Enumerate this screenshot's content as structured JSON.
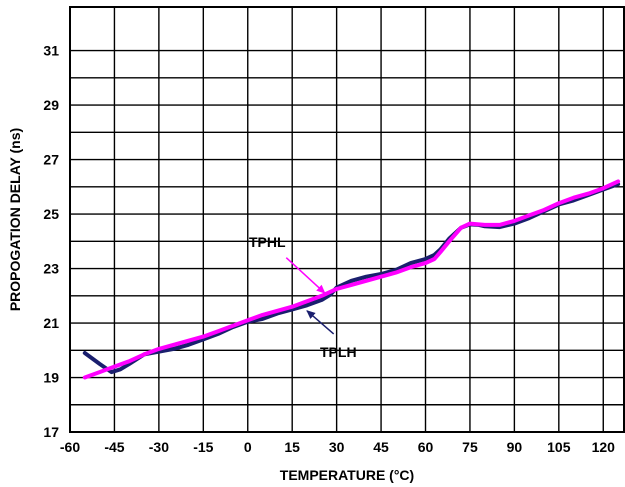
{
  "chart_data": {
    "type": "line",
    "title": "",
    "xlabel": "TEMPERATURE (°C)",
    "ylabel": "PROPOGATION DELAY (ns)",
    "xlim": [
      -60,
      127
    ],
    "ylim": [
      17,
      32.6
    ],
    "x_ticks": [
      -60,
      -45,
      -30,
      -15,
      0,
      15,
      30,
      45,
      60,
      75,
      90,
      105,
      120
    ],
    "y_ticks": [
      17,
      19,
      21,
      23,
      25,
      27,
      29,
      31
    ],
    "grid": true,
    "colors": {
      "TPLH": "#1a1f6e",
      "TPHL": "#ff00ff"
    },
    "series": [
      {
        "name": "TPLH",
        "x": [
          -55,
          -50,
          -46,
          -43,
          -40,
          -35,
          -30,
          -25,
          -20,
          -15,
          -10,
          -5,
          0,
          5,
          10,
          15,
          20,
          25,
          28,
          30,
          35,
          40,
          45,
          50,
          55,
          60,
          63,
          65,
          68,
          72,
          75,
          78,
          80,
          85,
          90,
          95,
          100,
          105,
          110,
          115,
          120,
          125
        ],
        "y": [
          19.9,
          19.5,
          19.2,
          19.3,
          19.5,
          19.85,
          19.95,
          20.05,
          20.2,
          20.4,
          20.6,
          20.85,
          21.05,
          21.15,
          21.35,
          21.5,
          21.65,
          21.85,
          22.05,
          22.3,
          22.55,
          22.7,
          22.8,
          22.95,
          23.2,
          23.35,
          23.5,
          23.7,
          24.1,
          24.5,
          24.62,
          24.6,
          24.55,
          24.52,
          24.65,
          24.85,
          25.1,
          25.35,
          25.5,
          25.7,
          25.9,
          26.1
        ]
      },
      {
        "name": "TPHL",
        "x": [
          -55,
          -50,
          -45,
          -40,
          -35,
          -30,
          -25,
          -20,
          -15,
          -10,
          -5,
          0,
          5,
          10,
          15,
          20,
          25,
          28,
          30,
          35,
          40,
          45,
          50,
          55,
          60,
          63,
          65,
          68,
          72,
          75,
          78,
          80,
          85,
          90,
          95,
          100,
          105,
          110,
          115,
          120,
          125
        ],
        "y": [
          19.0,
          19.2,
          19.4,
          19.6,
          19.85,
          20.05,
          20.2,
          20.35,
          20.5,
          20.7,
          20.9,
          21.1,
          21.3,
          21.45,
          21.6,
          21.8,
          22.0,
          22.15,
          22.25,
          22.4,
          22.55,
          22.7,
          22.85,
          23.05,
          23.2,
          23.35,
          23.6,
          24.0,
          24.5,
          24.65,
          24.62,
          24.6,
          24.6,
          24.75,
          24.95,
          25.15,
          25.4,
          25.6,
          25.75,
          25.95,
          26.2
        ]
      }
    ],
    "annotations": [
      {
        "text": "TPHL",
        "series": "TPHL"
      },
      {
        "text": "TPLH",
        "series": "TPLH"
      }
    ]
  }
}
